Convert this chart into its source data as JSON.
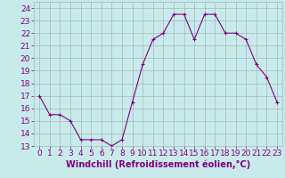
{
  "x": [
    0,
    1,
    2,
    3,
    4,
    5,
    6,
    7,
    8,
    9,
    10,
    11,
    12,
    13,
    14,
    15,
    16,
    17,
    18,
    19,
    20,
    21,
    22,
    23
  ],
  "y": [
    17,
    15.5,
    15.5,
    15,
    13.5,
    13.5,
    13.5,
    13,
    13.5,
    16.5,
    19.5,
    21.5,
    22,
    23.5,
    23.5,
    21.5,
    23.5,
    23.5,
    22,
    22,
    21.5,
    19.5,
    18.5,
    16.5
  ],
  "line_color": "#800080",
  "marker": "+",
  "marker_color": "#800080",
  "bg_color": "#c8eaea",
  "grid_color": "#a0b8b8",
  "xlabel": "Windchill (Refroidissement éolien,°C)",
  "xlabel_color": "#800080",
  "xlabel_fontsize": 7,
  "tick_color": "#800080",
  "tick_fontsize": 6.5,
  "ylim": [
    13,
    24.5
  ],
  "xlim": [
    -0.5,
    23.5
  ],
  "yticks": [
    13,
    14,
    15,
    16,
    17,
    18,
    19,
    20,
    21,
    22,
    23,
    24
  ],
  "xticks": [
    0,
    1,
    2,
    3,
    4,
    5,
    6,
    7,
    8,
    9,
    10,
    11,
    12,
    13,
    14,
    15,
    16,
    17,
    18,
    19,
    20,
    21,
    22,
    23
  ]
}
